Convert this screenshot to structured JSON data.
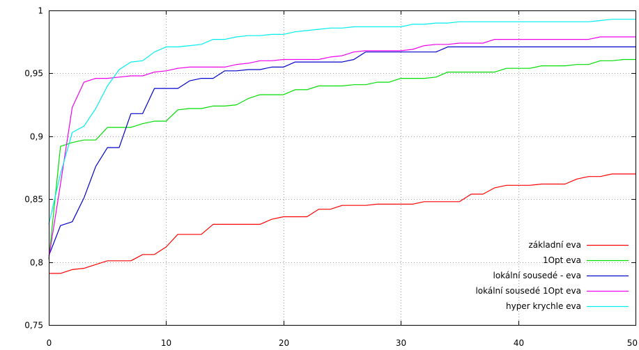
{
  "chart_data": {
    "type": "line",
    "title": "",
    "xlabel": "",
    "ylabel": "",
    "xlim": [
      0,
      50
    ],
    "ylim": [
      0.75,
      1
    ],
    "x_ticks": [
      "0",
      "10",
      "20",
      "30",
      "40",
      "50"
    ],
    "y_ticks": [
      "0,75",
      "0,8",
      "0,85",
      "0,9",
      "0,95",
      "1"
    ],
    "grid": true,
    "legend_position": "bottom-right",
    "series": [
      {
        "name": "základní eva",
        "color": "#ff0000",
        "x": [
          0,
          1,
          2,
          3,
          4,
          5,
          6,
          7,
          8,
          9,
          10,
          11,
          12,
          13,
          14,
          15,
          16,
          17,
          18,
          19,
          20,
          21,
          22,
          23,
          24,
          25,
          26,
          27,
          28,
          29,
          30,
          31,
          32,
          33,
          34,
          35,
          36,
          37,
          38,
          39,
          40,
          41,
          42,
          43,
          44,
          45,
          46,
          47,
          48,
          49,
          50
        ],
        "y": [
          0.791,
          0.791,
          0.794,
          0.795,
          0.798,
          0.801,
          0.801,
          0.801,
          0.806,
          0.806,
          0.812,
          0.822,
          0.822,
          0.822,
          0.83,
          0.83,
          0.83,
          0.83,
          0.83,
          0.834,
          0.836,
          0.836,
          0.836,
          0.842,
          0.842,
          0.845,
          0.845,
          0.845,
          0.846,
          0.846,
          0.846,
          0.846,
          0.848,
          0.848,
          0.848,
          0.848,
          0.854,
          0.854,
          0.859,
          0.861,
          0.861,
          0.861,
          0.862,
          0.862,
          0.862,
          0.866,
          0.868,
          0.868,
          0.87,
          0.87,
          0.87
        ]
      },
      {
        "name": "1Opt eva",
        "color": "#00dd00",
        "x": [
          0,
          1,
          2,
          3,
          4,
          5,
          6,
          7,
          8,
          9,
          10,
          11,
          12,
          13,
          14,
          15,
          16,
          17,
          18,
          19,
          20,
          21,
          22,
          23,
          24,
          25,
          26,
          27,
          28,
          29,
          30,
          31,
          32,
          33,
          34,
          35,
          36,
          37,
          38,
          39,
          40,
          41,
          42,
          43,
          44,
          45,
          46,
          47,
          48,
          49,
          50
        ],
        "y": [
          0.802,
          0.892,
          0.895,
          0.897,
          0.897,
          0.907,
          0.907,
          0.907,
          0.91,
          0.912,
          0.912,
          0.921,
          0.922,
          0.922,
          0.924,
          0.924,
          0.925,
          0.93,
          0.933,
          0.933,
          0.933,
          0.937,
          0.937,
          0.94,
          0.94,
          0.94,
          0.941,
          0.941,
          0.943,
          0.943,
          0.946,
          0.946,
          0.946,
          0.947,
          0.951,
          0.951,
          0.951,
          0.951,
          0.951,
          0.954,
          0.954,
          0.954,
          0.956,
          0.956,
          0.956,
          0.957,
          0.957,
          0.96,
          0.96,
          0.961,
          0.961
        ]
      },
      {
        "name": "lokální sousedé - eva",
        "color": "#0000cc",
        "x": [
          0,
          1,
          2,
          3,
          4,
          5,
          6,
          7,
          8,
          9,
          10,
          11,
          12,
          13,
          14,
          15,
          16,
          17,
          18,
          19,
          20,
          21,
          22,
          23,
          24,
          25,
          26,
          27,
          28,
          29,
          30,
          31,
          32,
          33,
          34,
          35,
          36,
          37,
          38,
          39,
          40,
          41,
          42,
          43,
          44,
          45,
          46,
          47,
          48,
          49,
          50
        ],
        "y": [
          0.805,
          0.829,
          0.832,
          0.851,
          0.876,
          0.891,
          0.891,
          0.918,
          0.918,
          0.938,
          0.938,
          0.938,
          0.944,
          0.946,
          0.946,
          0.952,
          0.952,
          0.953,
          0.953,
          0.955,
          0.955,
          0.959,
          0.959,
          0.959,
          0.959,
          0.959,
          0.961,
          0.967,
          0.967,
          0.967,
          0.967,
          0.967,
          0.967,
          0.967,
          0.971,
          0.971,
          0.971,
          0.971,
          0.971,
          0.971,
          0.971,
          0.971,
          0.971,
          0.971,
          0.971,
          0.971,
          0.971,
          0.971,
          0.971,
          0.971,
          0.971
        ]
      },
      {
        "name": "lokální sousedé 1Opt eva",
        "color": "#ee00ee",
        "x": [
          0,
          1,
          2,
          3,
          4,
          5,
          6,
          7,
          8,
          9,
          10,
          11,
          12,
          13,
          14,
          15,
          16,
          17,
          18,
          19,
          20,
          21,
          22,
          23,
          24,
          25,
          26,
          27,
          28,
          29,
          30,
          31,
          32,
          33,
          34,
          35,
          36,
          37,
          38,
          39,
          40,
          41,
          42,
          43,
          44,
          45,
          46,
          47,
          48,
          49,
          50
        ],
        "y": [
          0.803,
          0.862,
          0.923,
          0.943,
          0.946,
          0.946,
          0.947,
          0.948,
          0.948,
          0.951,
          0.952,
          0.954,
          0.955,
          0.955,
          0.955,
          0.955,
          0.957,
          0.958,
          0.96,
          0.96,
          0.961,
          0.961,
          0.961,
          0.961,
          0.963,
          0.964,
          0.967,
          0.968,
          0.968,
          0.968,
          0.968,
          0.969,
          0.972,
          0.973,
          0.973,
          0.974,
          0.974,
          0.974,
          0.977,
          0.977,
          0.977,
          0.977,
          0.977,
          0.977,
          0.977,
          0.977,
          0.977,
          0.979,
          0.979,
          0.979,
          0.979
        ]
      },
      {
        "name": "hyper krychle eva",
        "color": "#00eeee",
        "x": [
          0,
          1,
          2,
          3,
          4,
          5,
          6,
          7,
          8,
          9,
          10,
          11,
          12,
          13,
          14,
          15,
          16,
          17,
          18,
          19,
          20,
          21,
          22,
          23,
          24,
          25,
          26,
          27,
          28,
          29,
          30,
          31,
          32,
          33,
          34,
          35,
          36,
          37,
          38,
          39,
          40,
          41,
          42,
          43,
          44,
          45,
          46,
          47,
          48,
          49,
          50
        ],
        "y": [
          0.83,
          0.87,
          0.903,
          0.908,
          0.922,
          0.94,
          0.953,
          0.959,
          0.96,
          0.967,
          0.971,
          0.971,
          0.972,
          0.973,
          0.977,
          0.977,
          0.979,
          0.98,
          0.98,
          0.981,
          0.981,
          0.983,
          0.984,
          0.985,
          0.986,
          0.986,
          0.987,
          0.987,
          0.987,
          0.987,
          0.987,
          0.989,
          0.989,
          0.99,
          0.99,
          0.991,
          0.991,
          0.991,
          0.991,
          0.991,
          0.991,
          0.991,
          0.991,
          0.991,
          0.991,
          0.991,
          0.991,
          0.992,
          0.993,
          0.993,
          0.993
        ]
      }
    ]
  }
}
